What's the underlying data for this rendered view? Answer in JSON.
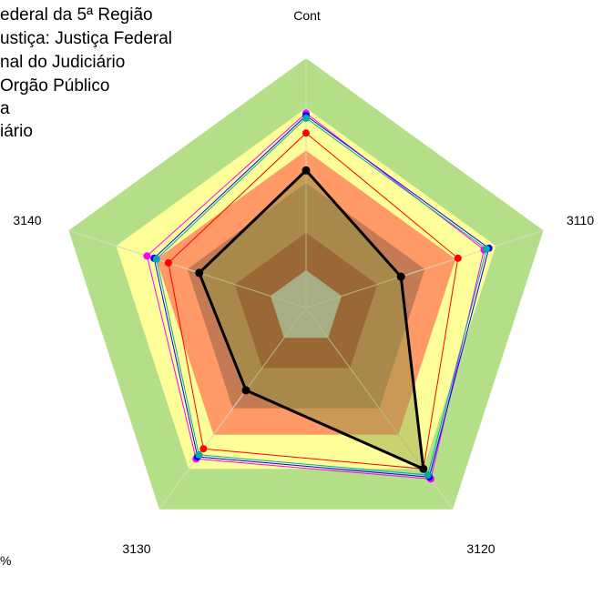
{
  "legend": {
    "lines": [
      "ederal da 5ª Região",
      "ustiça: Justiça Federal",
      "nal do Judiciário",
      "Orgão Público",
      "a",
      "iário"
    ]
  },
  "footer": {
    "text": "%"
  },
  "chart_data": {
    "type": "radar",
    "axes": [
      "Cont",
      "3110",
      "3120",
      "3130",
      "3140"
    ],
    "rlim": [
      0,
      100
    ],
    "bands": [
      {
        "from": 0,
        "to": 15,
        "color": "#c0c0c0"
      },
      {
        "from": 15,
        "to": 30,
        "color": "#a8402c"
      },
      {
        "from": 30,
        "to": 50,
        "color": "#c47a55"
      },
      {
        "from": 50,
        "to": 63,
        "color": "#ff9966"
      },
      {
        "from": 63,
        "to": 80,
        "color": "#ffff99"
      },
      {
        "from": 80,
        "to": 100,
        "color": "#b4df88"
      }
    ],
    "series": [
      {
        "color": "#ff00ff",
        "values": [
          78,
          75,
          85,
          75,
          67
        ]
      },
      {
        "color": "#0000ff",
        "values": [
          77,
          77,
          84,
          74,
          64
        ]
      },
      {
        "color": "#00aaaa",
        "values": [
          76,
          76,
          83,
          73,
          63
        ]
      },
      {
        "color": "#ff0000",
        "values": [
          70,
          64,
          80,
          70,
          58
        ]
      },
      {
        "color": "#000000",
        "values": [
          55,
          40,
          80,
          41,
          45
        ]
      }
    ]
  }
}
